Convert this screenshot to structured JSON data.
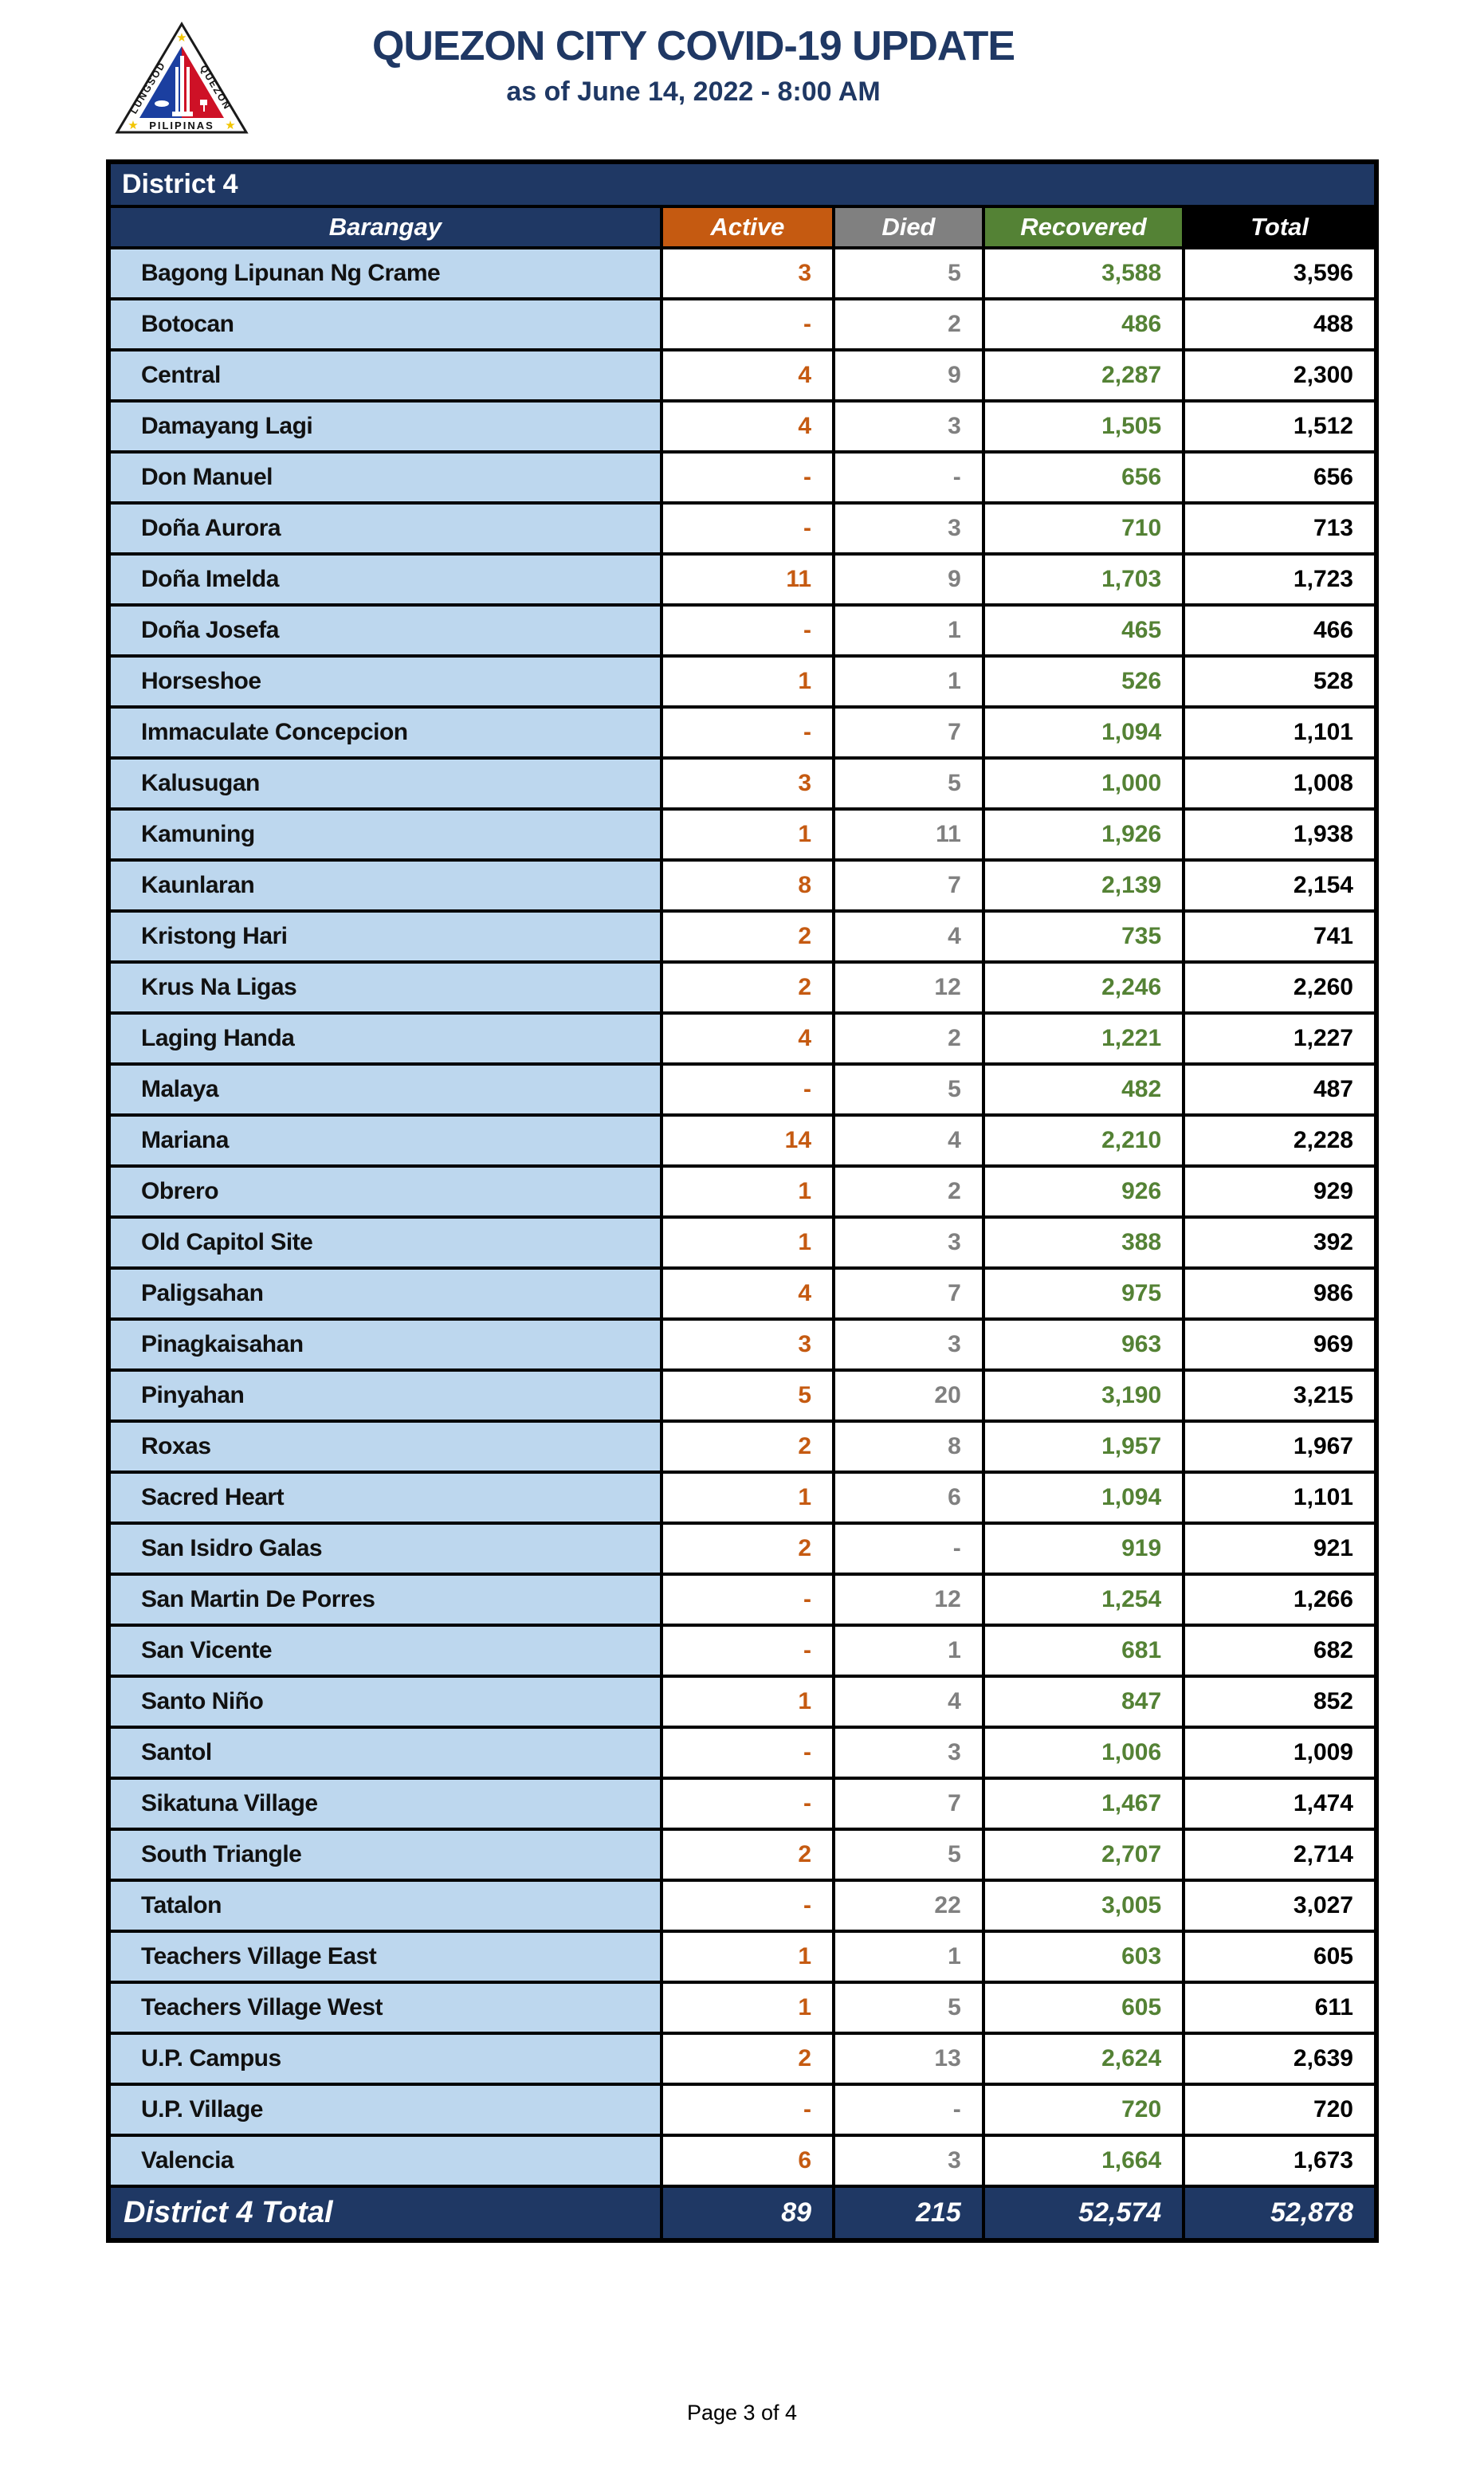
{
  "header": {
    "title": "QUEZON CITY COVID-19 UPDATE",
    "subtitle": "as of June 14, 2022 - 8:00 AM",
    "logo": {
      "name": "quezon-city-seal",
      "text_left": "LUNGSOD",
      "text_right": "QUEZON",
      "text_bottom": "PILIPINAS"
    }
  },
  "colors": {
    "title_navy": "#1F3864",
    "header_navy": "#1F3864",
    "active_orange": "#C55A11",
    "died_gray": "#808080",
    "recovered_green": "#548235",
    "total_black": "#000000",
    "barangay_cell_blue": "#BDD7EE",
    "border_black": "#000000"
  },
  "table": {
    "district_label": "District 4",
    "columns": [
      {
        "key": "barangay",
        "label": "Barangay",
        "color": "#1F3864"
      },
      {
        "key": "active",
        "label": "Active",
        "color": "#C55A11"
      },
      {
        "key": "died",
        "label": "Died",
        "color": "#808080"
      },
      {
        "key": "recovered",
        "label": "Recovered",
        "color": "#548235"
      },
      {
        "key": "total",
        "label": "Total",
        "color": "#000000"
      }
    ],
    "rows": [
      {
        "barangay": "Bagong Lipunan Ng Crame",
        "active": "3",
        "died": "5",
        "recovered": "3,588",
        "total": "3,596"
      },
      {
        "barangay": "Botocan",
        "active": "-",
        "died": "2",
        "recovered": "486",
        "total": "488"
      },
      {
        "barangay": "Central",
        "active": "4",
        "died": "9",
        "recovered": "2,287",
        "total": "2,300"
      },
      {
        "barangay": "Damayang Lagi",
        "active": "4",
        "died": "3",
        "recovered": "1,505",
        "total": "1,512"
      },
      {
        "barangay": "Don Manuel",
        "active": "-",
        "died": "-",
        "recovered": "656",
        "total": "656"
      },
      {
        "barangay": "Doña Aurora",
        "active": "-",
        "died": "3",
        "recovered": "710",
        "total": "713"
      },
      {
        "barangay": "Doña Imelda",
        "active": "11",
        "died": "9",
        "recovered": "1,703",
        "total": "1,723"
      },
      {
        "barangay": "Doña Josefa",
        "active": "-",
        "died": "1",
        "recovered": "465",
        "total": "466"
      },
      {
        "barangay": "Horseshoe",
        "active": "1",
        "died": "1",
        "recovered": "526",
        "total": "528"
      },
      {
        "barangay": "Immaculate Concepcion",
        "active": "-",
        "died": "7",
        "recovered": "1,094",
        "total": "1,101"
      },
      {
        "barangay": "Kalusugan",
        "active": "3",
        "died": "5",
        "recovered": "1,000",
        "total": "1,008"
      },
      {
        "barangay": "Kamuning",
        "active": "1",
        "died": "11",
        "recovered": "1,926",
        "total": "1,938"
      },
      {
        "barangay": "Kaunlaran",
        "active": "8",
        "died": "7",
        "recovered": "2,139",
        "total": "2,154"
      },
      {
        "barangay": "Kristong Hari",
        "active": "2",
        "died": "4",
        "recovered": "735",
        "total": "741"
      },
      {
        "barangay": "Krus Na Ligas",
        "active": "2",
        "died": "12",
        "recovered": "2,246",
        "total": "2,260"
      },
      {
        "barangay": "Laging Handa",
        "active": "4",
        "died": "2",
        "recovered": "1,221",
        "total": "1,227"
      },
      {
        "barangay": "Malaya",
        "active": "-",
        "died": "5",
        "recovered": "482",
        "total": "487"
      },
      {
        "barangay": "Mariana",
        "active": "14",
        "died": "4",
        "recovered": "2,210",
        "total": "2,228"
      },
      {
        "barangay": "Obrero",
        "active": "1",
        "died": "2",
        "recovered": "926",
        "total": "929"
      },
      {
        "barangay": "Old Capitol Site",
        "active": "1",
        "died": "3",
        "recovered": "388",
        "total": "392"
      },
      {
        "barangay": "Paligsahan",
        "active": "4",
        "died": "7",
        "recovered": "975",
        "total": "986"
      },
      {
        "barangay": "Pinagkaisahan",
        "active": "3",
        "died": "3",
        "recovered": "963",
        "total": "969"
      },
      {
        "barangay": "Pinyahan",
        "active": "5",
        "died": "20",
        "recovered": "3,190",
        "total": "3,215"
      },
      {
        "barangay": "Roxas",
        "active": "2",
        "died": "8",
        "recovered": "1,957",
        "total": "1,967"
      },
      {
        "barangay": "Sacred Heart",
        "active": "1",
        "died": "6",
        "recovered": "1,094",
        "total": "1,101"
      },
      {
        "barangay": "San Isidro Galas",
        "active": "2",
        "died": "-",
        "recovered": "919",
        "total": "921"
      },
      {
        "barangay": "San Martin De Porres",
        "active": "-",
        "died": "12",
        "recovered": "1,254",
        "total": "1,266"
      },
      {
        "barangay": "San Vicente",
        "active": "-",
        "died": "1",
        "recovered": "681",
        "total": "682"
      },
      {
        "barangay": "Santo Niño",
        "active": "1",
        "died": "4",
        "recovered": "847",
        "total": "852"
      },
      {
        "barangay": "Santol",
        "active": "-",
        "died": "3",
        "recovered": "1,006",
        "total": "1,009"
      },
      {
        "barangay": "Sikatuna Village",
        "active": "-",
        "died": "7",
        "recovered": "1,467",
        "total": "1,474"
      },
      {
        "barangay": "South Triangle",
        "active": "2",
        "died": "5",
        "recovered": "2,707",
        "total": "2,714"
      },
      {
        "barangay": "Tatalon",
        "active": "-",
        "died": "22",
        "recovered": "3,005",
        "total": "3,027"
      },
      {
        "barangay": "Teachers Village East",
        "active": "1",
        "died": "1",
        "recovered": "603",
        "total": "605"
      },
      {
        "barangay": "Teachers Village West",
        "active": "1",
        "died": "5",
        "recovered": "605",
        "total": "611"
      },
      {
        "barangay": "U.P. Campus",
        "active": "2",
        "died": "13",
        "recovered": "2,624",
        "total": "2,639"
      },
      {
        "barangay": "U.P. Village",
        "active": "-",
        "died": "-",
        "recovered": "720",
        "total": "720"
      },
      {
        "barangay": "Valencia",
        "active": "6",
        "died": "3",
        "recovered": "1,664",
        "total": "1,673"
      }
    ],
    "total_row": {
      "label": "District 4 Total",
      "active": "89",
      "died": "215",
      "recovered": "52,574",
      "total": "52,878"
    }
  },
  "footer": {
    "page_label": "Page 3 of 4"
  }
}
